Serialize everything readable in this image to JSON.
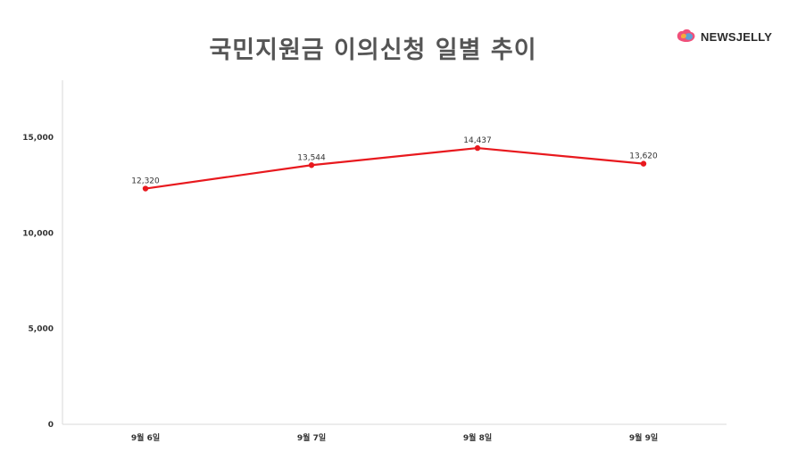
{
  "brand": {
    "name": "NEWSJELLY",
    "logo_icon": "jelly-logo-icon"
  },
  "colors": {
    "line": "#e8191e",
    "axis": "#d9d9d9",
    "title": "#555555"
  },
  "chart_data": {
    "type": "line",
    "title": "국민지원금 이의신청 일별 추이",
    "xlabel": "",
    "ylabel": "",
    "categories": [
      "9월 6일",
      "9월 7일",
      "9월 8일",
      "9월 9일"
    ],
    "series": [
      {
        "values": [
          12320,
          13544,
          14437,
          13620
        ],
        "labels": [
          "12,320",
          "13,544",
          "14,437",
          "13,620"
        ]
      }
    ],
    "ylim": [
      0,
      15000
    ],
    "yticks": [
      0,
      5000,
      10000,
      15000
    ],
    "ytick_labels": [
      "0",
      "5,000",
      "10,000",
      "15,000"
    ],
    "grid": false,
    "legend": "none"
  }
}
